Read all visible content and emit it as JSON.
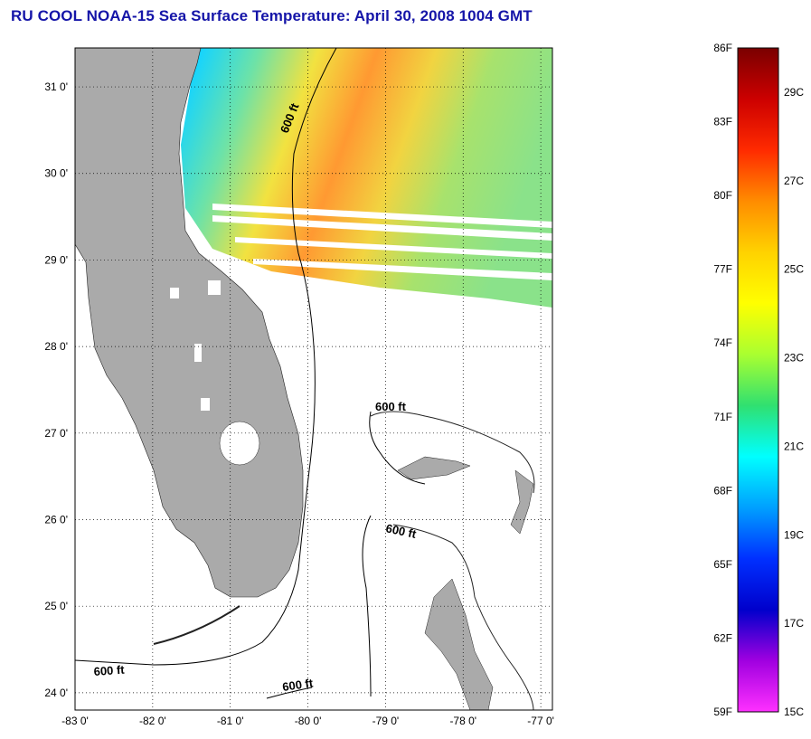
{
  "title": "RU COOL  NOAA-15  Sea Surface Temperature:  April 30, 2008 1004 GMT",
  "map": {
    "lon_ticks": [
      "-83 0'",
      "-82 0'",
      "-81 0'",
      "-80 0'",
      "-79 0'",
      "-78 0'",
      "-77 0'"
    ],
    "lat_ticks": [
      "31 0'",
      "30 0'",
      "29 0'",
      "28 0'",
      "27 0'",
      "26 0'",
      "25 0'",
      "24 0'"
    ],
    "lon_range": [
      -83,
      -76.85
    ],
    "lat_range": [
      23.8,
      31.45
    ],
    "grid": "dotted",
    "land_color": "#aaaaaa",
    "contour_labels": [
      "600 ft",
      "600 ft",
      "600 ft",
      "600 ft",
      "600 ft"
    ]
  },
  "colorbar": {
    "fahrenheit_labels": [
      "86F",
      "83F",
      "80F",
      "77F",
      "74F",
      "71F",
      "68F",
      "65F",
      "62F",
      "59F"
    ],
    "celsius_labels": [
      "29C",
      "27C",
      "25C",
      "23C",
      "21C",
      "19C",
      "17C",
      "15C"
    ],
    "celsius_values": [
      29,
      27,
      25,
      23,
      21,
      19,
      17,
      15
    ],
    "range_f": [
      59,
      86
    ],
    "colors_top_to_bottom": [
      "#7a0000",
      "#cc0000",
      "#ff2a00",
      "#ff8c00",
      "#ffd200",
      "#ffff00",
      "#aaff30",
      "#30e070",
      "#00ffff",
      "#00a0ff",
      "#0030ff",
      "#0000cc",
      "#a000e0",
      "#ff30ff"
    ]
  }
}
